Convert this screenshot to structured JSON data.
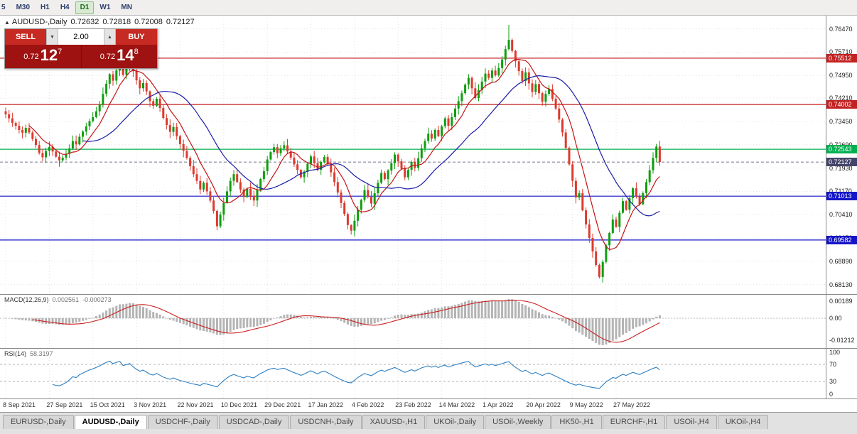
{
  "toolbar": {
    "timeframes": [
      {
        "label": "5",
        "active": false
      },
      {
        "label": "M30",
        "active": false
      },
      {
        "label": "H1",
        "active": false
      },
      {
        "label": "H4",
        "active": false
      },
      {
        "label": "D1",
        "active": true
      },
      {
        "label": "W1",
        "active": false
      },
      {
        "label": "MN",
        "active": false
      }
    ]
  },
  "icons": {
    "collapse_panel": "▲",
    "volume_down": "▼",
    "volume_up": "▲"
  },
  "chart": {
    "title": {
      "symbol": "AUDUSD-,Daily",
      "open": "0.72632",
      "high": "0.72818",
      "low": "0.72008",
      "close": "0.72127"
    },
    "trade_panel": {
      "sell_label": "SELL",
      "buy_label": "BUY",
      "volume": "2.00",
      "sell": {
        "big": "0.72",
        "pips": "12",
        "sup": "7"
      },
      "buy": {
        "big": "0.72",
        "pips": "14",
        "sup": "8"
      }
    },
    "axis_ticks": [
      "0.76470",
      "0.75710",
      "0.74950",
      "0.74210",
      "0.73450",
      "0.72690",
      "0.71930",
      "0.71170",
      "0.70410",
      "0.69650",
      "0.68890",
      "0.68130"
    ],
    "levels": [
      {
        "price": 0.75512,
        "label": "0.75512",
        "color": "#c32222"
      },
      {
        "price": 0.74002,
        "label": "0.74002",
        "color": "#c32222"
      },
      {
        "price": 0.72543,
        "label": "0.72543",
        "color": "#00b050"
      },
      {
        "price": 0.71013,
        "label": "0.71013",
        "color": "#1515c8"
      },
      {
        "price": 0.69582,
        "label": "0.69582",
        "color": "#1515c8"
      }
    ],
    "current_price": {
      "price": 0.72127,
      "label": "0.72127",
      "color": "#44446a"
    }
  },
  "macd": {
    "label": "MACD(12,26,9)",
    "value_main": "0.002561",
    "value_signal": "-0.000273",
    "axis": [
      "0.00189",
      "0.00",
      "-0.01212"
    ]
  },
  "rsi": {
    "label": "RSI(14)",
    "value": "58.3197",
    "axis": [
      "100",
      "70",
      "30",
      "0"
    ],
    "levels": [
      70,
      30
    ]
  },
  "dates": [
    "8 Sep 2021",
    "27 Sep 2021",
    "15 Oct 2021",
    "3 Nov 2021",
    "22 Nov 2021",
    "10 Dec 2021",
    "29 Dec 2021",
    "17 Jan 2022",
    "4 Feb 2022",
    "23 Feb 2022",
    "14 Mar 2022",
    "1 Apr 2022",
    "20 Apr 2022",
    "9 May 2022",
    "27 May 2022"
  ],
  "tabs": [
    {
      "label": "EURUSD-,Daily",
      "active": false
    },
    {
      "label": "AUDUSD-,Daily",
      "active": true
    },
    {
      "label": "USDCHF-,Daily",
      "active": false
    },
    {
      "label": "USDCAD-,Daily",
      "active": false
    },
    {
      "label": "USDCNH-,Daily",
      "active": false
    },
    {
      "label": "XAUUSD-,H1",
      "active": false
    },
    {
      "label": "UKOil-,Daily",
      "active": false
    },
    {
      "label": "USOil-,Weekly",
      "active": false
    },
    {
      "label": "HK50-,H1",
      "active": false
    },
    {
      "label": "EURCHF-,H1",
      "active": false
    },
    {
      "label": "USOil-,H4",
      "active": false
    },
    {
      "label": "UKOil-,H4",
      "active": false
    }
  ],
  "chart_data": {
    "type": "candlestick",
    "title": "AUDUSD-,Daily",
    "x_axis": "date",
    "y_axis": "price",
    "price_range": [
      0.6782,
      0.769
    ],
    "first_open": 0.7378,
    "closes": [
      0.7368,
      0.7355,
      0.734,
      0.7331,
      0.7317,
      0.7308,
      0.7324,
      0.7309,
      0.7288,
      0.7268,
      0.7242,
      0.7228,
      0.7249,
      0.7262,
      0.7247,
      0.723,
      0.7218,
      0.7227,
      0.7239,
      0.7257,
      0.7281,
      0.727,
      0.7295,
      0.7312,
      0.7329,
      0.7346,
      0.7359,
      0.7378,
      0.7401,
      0.7435,
      0.7468,
      0.7499,
      0.7478,
      0.7511,
      0.7537,
      0.7497,
      0.7519,
      0.7545,
      0.7509,
      0.7479,
      0.7453,
      0.747,
      0.7443,
      0.7411,
      0.7396,
      0.7419,
      0.7389,
      0.7356,
      0.7333,
      0.7311,
      0.7327,
      0.7297,
      0.7271,
      0.7249,
      0.7226,
      0.7199,
      0.7173,
      0.7151,
      0.7123,
      0.7145,
      0.7117,
      0.7087,
      0.7053,
      0.7003,
      0.7041,
      0.7079,
      0.7117,
      0.7151,
      0.7173,
      0.7147,
      0.7123,
      0.7099,
      0.7125,
      0.7103,
      0.7087,
      0.7121,
      0.7157,
      0.7183,
      0.7221,
      0.7245,
      0.7261,
      0.7241,
      0.7257,
      0.7267,
      0.7247,
      0.7227,
      0.7205,
      0.7187,
      0.7163,
      0.7181,
      0.7207,
      0.7231,
      0.7209,
      0.7187,
      0.7213,
      0.7229,
      0.7205,
      0.7179,
      0.7147,
      0.7113,
      0.7079,
      0.7043,
      0.7007,
      0.6989,
      0.7021,
      0.7057,
      0.7089,
      0.7121,
      0.7099,
      0.7077,
      0.7111,
      0.7145,
      0.7177,
      0.7157,
      0.7185,
      0.7209,
      0.7237,
      0.7215,
      0.7191,
      0.7163,
      0.7187,
      0.7213,
      0.7193,
      0.7225,
      0.7257,
      0.7281,
      0.7305,
      0.7289,
      0.7317,
      0.7297,
      0.7329,
      0.7355,
      0.7331,
      0.7359,
      0.7387,
      0.7411,
      0.7437,
      0.7465,
      0.7487,
      0.7453,
      0.7421,
      0.7447,
      0.7475,
      0.7501,
      0.7487,
      0.7511,
      0.7495,
      0.7519,
      0.7547,
      0.7581,
      0.7611,
      0.7575,
      0.7541,
      0.7509,
      0.7477,
      0.7505,
      0.7469,
      0.7441,
      0.7467,
      0.7437,
      0.7409,
      0.7435,
      0.7451,
      0.7419,
      0.7387,
      0.7351,
      0.7309,
      0.7259,
      0.7205,
      0.7151,
      0.7097,
      0.7111,
      0.7055,
      0.7009,
      0.6965,
      0.6921,
      0.6877,
      0.6838,
      0.6887,
      0.6941,
      0.6981,
      0.7025,
      0.7001,
      0.7047,
      0.7085,
      0.7057,
      0.7095,
      0.7127,
      0.7101,
      0.7075,
      0.7111,
      0.7147,
      0.7186,
      0.7226,
      0.72632,
      0.72127
    ],
    "last_bar": {
      "open": 0.72632,
      "high": 0.72818,
      "low": 0.72008,
      "close": 0.72127
    },
    "spike": {
      "index": 150,
      "high": 0.766
    },
    "date_indices": [
      0,
      13,
      26,
      39,
      52,
      65,
      78,
      91,
      104,
      117,
      130,
      143,
      156,
      169,
      182
    ],
    "ma_fast_period": 8,
    "ma_slow_period": 24,
    "indicators": {
      "macd": "12,26,9",
      "rsi": "14"
    },
    "colors": {
      "up": "#0f9e0f",
      "down": "#dc3a2e",
      "ma_fast": "#c41414",
      "ma_slow": "#1c1ca8",
      "macd_hist": "#b4b4b4",
      "macd_signal": "#cc2020",
      "rsi_line": "#2d7fc1",
      "grid": "#e3e3e3"
    }
  }
}
